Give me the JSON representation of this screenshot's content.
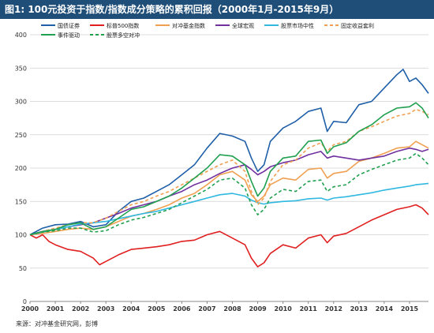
{
  "header": {
    "title": "图1: 100元投资于指数/指数成分策略的累积回报（2000年1月-2015年9月）"
  },
  "source": "来源：对冲基金研究网，彭博",
  "chart_data": {
    "type": "line",
    "title": "图1: 100元投资于指数/指数成分策略的累积回报（2000年1月-2015年9月）",
    "xlabel": "",
    "ylabel": "",
    "xlim": [
      2000,
      2015.75
    ],
    "ylim": [
      0,
      400
    ],
    "yticks": [
      0,
      50,
      100,
      150,
      200,
      250,
      300,
      350,
      400
    ],
    "xticks": [
      "2000",
      "2001",
      "2002",
      "2003",
      "2004",
      "2005",
      "2006",
      "2007",
      "2008",
      "2009",
      "2010",
      "2011",
      "2012",
      "2013",
      "2014",
      "2015"
    ],
    "grid": true,
    "legend_position": "top",
    "series": [
      {
        "name": "国债证券",
        "color": "#1f5fa8",
        "dash": "",
        "points": [
          [
            2000,
            100
          ],
          [
            2000.5,
            110
          ],
          [
            2001,
            115
          ],
          [
            2001.5,
            116
          ],
          [
            2002,
            120
          ],
          [
            2002.5,
            112
          ],
          [
            2003,
            115
          ],
          [
            2003.5,
            135
          ],
          [
            2004,
            150
          ],
          [
            2004.5,
            155
          ],
          [
            2005,
            165
          ],
          [
            2005.5,
            175
          ],
          [
            2006,
            190
          ],
          [
            2006.5,
            205
          ],
          [
            2007,
            230
          ],
          [
            2007.5,
            252
          ],
          [
            2008,
            248
          ],
          [
            2008.5,
            240
          ],
          [
            2008.75,
            215
          ],
          [
            2009,
            195
          ],
          [
            2009.25,
            205
          ],
          [
            2009.5,
            240
          ],
          [
            2010,
            260
          ],
          [
            2010.5,
            270
          ],
          [
            2011,
            285
          ],
          [
            2011.5,
            290
          ],
          [
            2011.75,
            255
          ],
          [
            2012,
            270
          ],
          [
            2012.5,
            268
          ],
          [
            2013,
            295
          ],
          [
            2013.5,
            300
          ],
          [
            2014,
            320
          ],
          [
            2014.5,
            340
          ],
          [
            2014.75,
            348
          ],
          [
            2015,
            330
          ],
          [
            2015.25,
            335
          ],
          [
            2015.5,
            325
          ],
          [
            2015.75,
            312
          ]
        ]
      },
      {
        "name": "标普500指数",
        "color": "#e02020",
        "dash": "",
        "points": [
          [
            2000,
            100
          ],
          [
            2000.25,
            95
          ],
          [
            2000.5,
            100
          ],
          [
            2000.75,
            90
          ],
          [
            2001,
            85
          ],
          [
            2001.5,
            78
          ],
          [
            2002,
            75
          ],
          [
            2002.5,
            65
          ],
          [
            2002.75,
            55
          ],
          [
            2003,
            60
          ],
          [
            2003.5,
            70
          ],
          [
            2004,
            78
          ],
          [
            2004.5,
            80
          ],
          [
            2005,
            82
          ],
          [
            2005.5,
            85
          ],
          [
            2006,
            90
          ],
          [
            2006.5,
            92
          ],
          [
            2007,
            100
          ],
          [
            2007.5,
            105
          ],
          [
            2008,
            95
          ],
          [
            2008.5,
            85
          ],
          [
            2008.75,
            65
          ],
          [
            2009,
            52
          ],
          [
            2009.25,
            58
          ],
          [
            2009.5,
            72
          ],
          [
            2010,
            85
          ],
          [
            2010.5,
            80
          ],
          [
            2011,
            95
          ],
          [
            2011.5,
            100
          ],
          [
            2011.75,
            88
          ],
          [
            2012,
            98
          ],
          [
            2012.5,
            102
          ],
          [
            2013,
            112
          ],
          [
            2013.5,
            122
          ],
          [
            2014,
            130
          ],
          [
            2014.5,
            138
          ],
          [
            2015,
            142
          ],
          [
            2015.25,
            145
          ],
          [
            2015.5,
            140
          ],
          [
            2015.75,
            130
          ]
        ]
      },
      {
        "name": "对冲基金指数",
        "color": "#f0a050",
        "dash": "",
        "points": [
          [
            2000,
            100
          ],
          [
            2000.5,
            102
          ],
          [
            2001,
            105
          ],
          [
            2001.5,
            108
          ],
          [
            2002,
            110
          ],
          [
            2002.5,
            108
          ],
          [
            2003,
            112
          ],
          [
            2003.5,
            120
          ],
          [
            2004,
            128
          ],
          [
            2004.5,
            132
          ],
          [
            2005,
            138
          ],
          [
            2005.5,
            145
          ],
          [
            2006,
            155
          ],
          [
            2006.5,
            162
          ],
          [
            2007,
            175
          ],
          [
            2007.5,
            190
          ],
          [
            2008,
            195
          ],
          [
            2008.5,
            182
          ],
          [
            2008.75,
            160
          ],
          [
            2009,
            150
          ],
          [
            2009.25,
            158
          ],
          [
            2009.5,
            175
          ],
          [
            2010,
            185
          ],
          [
            2010.5,
            182
          ],
          [
            2011,
            198
          ],
          [
            2011.5,
            200
          ],
          [
            2011.75,
            185
          ],
          [
            2012,
            192
          ],
          [
            2012.5,
            195
          ],
          [
            2013,
            210
          ],
          [
            2013.5,
            215
          ],
          [
            2014,
            222
          ],
          [
            2014.5,
            230
          ],
          [
            2015,
            232
          ],
          [
            2015.25,
            240
          ],
          [
            2015.5,
            235
          ],
          [
            2015.75,
            230
          ]
        ]
      },
      {
        "name": "全球宏观",
        "color": "#7030a0",
        "dash": "",
        "points": [
          [
            2000,
            100
          ],
          [
            2000.5,
            105
          ],
          [
            2001,
            108
          ],
          [
            2001.5,
            112
          ],
          [
            2002,
            115
          ],
          [
            2002.5,
            118
          ],
          [
            2003,
            125
          ],
          [
            2003.5,
            132
          ],
          [
            2004,
            140
          ],
          [
            2004.5,
            145
          ],
          [
            2005,
            150
          ],
          [
            2005.5,
            158
          ],
          [
            2006,
            165
          ],
          [
            2006.5,
            175
          ],
          [
            2007,
            182
          ],
          [
            2007.5,
            192
          ],
          [
            2008,
            200
          ],
          [
            2008.5,
            205
          ],
          [
            2008.75,
            198
          ],
          [
            2009,
            190
          ],
          [
            2009.25,
            195
          ],
          [
            2009.5,
            202
          ],
          [
            2010,
            208
          ],
          [
            2010.5,
            212
          ],
          [
            2011,
            220
          ],
          [
            2011.5,
            225
          ],
          [
            2011.75,
            215
          ],
          [
            2012,
            218
          ],
          [
            2012.5,
            215
          ],
          [
            2013,
            212
          ],
          [
            2013.5,
            215
          ],
          [
            2014,
            218
          ],
          [
            2014.5,
            225
          ],
          [
            2015,
            230
          ],
          [
            2015.25,
            228
          ],
          [
            2015.5,
            225
          ],
          [
            2015.75,
            228
          ]
        ]
      },
      {
        "name": "股票市场中性",
        "color": "#30b8e0",
        "dash": "",
        "points": [
          [
            2000,
            100
          ],
          [
            2000.5,
            104
          ],
          [
            2001,
            108
          ],
          [
            2001.5,
            112
          ],
          [
            2002,
            116
          ],
          [
            2002.5,
            118
          ],
          [
            2003,
            120
          ],
          [
            2003.5,
            124
          ],
          [
            2004,
            128
          ],
          [
            2004.5,
            132
          ],
          [
            2005,
            135
          ],
          [
            2005.5,
            140
          ],
          [
            2006,
            145
          ],
          [
            2006.5,
            150
          ],
          [
            2007,
            155
          ],
          [
            2007.5,
            160
          ],
          [
            2008,
            162
          ],
          [
            2008.5,
            158
          ],
          [
            2008.75,
            152
          ],
          [
            2009,
            148
          ],
          [
            2009.25,
            146
          ],
          [
            2009.5,
            148
          ],
          [
            2010,
            150
          ],
          [
            2010.5,
            151
          ],
          [
            2011,
            154
          ],
          [
            2011.5,
            155
          ],
          [
            2011.75,
            152
          ],
          [
            2012,
            155
          ],
          [
            2012.5,
            157
          ],
          [
            2013,
            160
          ],
          [
            2013.5,
            163
          ],
          [
            2014,
            167
          ],
          [
            2014.5,
            170
          ],
          [
            2015,
            173
          ],
          [
            2015.25,
            175
          ],
          [
            2015.5,
            176
          ],
          [
            2015.75,
            177
          ]
        ]
      },
      {
        "name": "固定收益套利",
        "color": "#f0a050",
        "dash": "4,3",
        "points": [
          [
            2000,
            100
          ],
          [
            2000.5,
            105
          ],
          [
            2001,
            110
          ],
          [
            2001.5,
            115
          ],
          [
            2002,
            118
          ],
          [
            2002.5,
            118
          ],
          [
            2003,
            125
          ],
          [
            2003.5,
            135
          ],
          [
            2004,
            145
          ],
          [
            2004.5,
            150
          ],
          [
            2005,
            158
          ],
          [
            2005.5,
            165
          ],
          [
            2006,
            175
          ],
          [
            2006.5,
            185
          ],
          [
            2007,
            195
          ],
          [
            2007.5,
            205
          ],
          [
            2008,
            212
          ],
          [
            2008.5,
            195
          ],
          [
            2008.75,
            165
          ],
          [
            2009,
            145
          ],
          [
            2009.25,
            155
          ],
          [
            2009.5,
            180
          ],
          [
            2010,
            205
          ],
          [
            2010.5,
            212
          ],
          [
            2011,
            230
          ],
          [
            2011.5,
            238
          ],
          [
            2011.75,
            225
          ],
          [
            2012,
            235
          ],
          [
            2012.5,
            240
          ],
          [
            2013,
            255
          ],
          [
            2013.5,
            262
          ],
          [
            2014,
            270
          ],
          [
            2014.5,
            278
          ],
          [
            2015,
            282
          ],
          [
            2015.25,
            288
          ],
          [
            2015.5,
            285
          ],
          [
            2015.75,
            280
          ]
        ]
      },
      {
        "name": "事件驱动",
        "color": "#20a050",
        "dash": "",
        "points": [
          [
            2000,
            100
          ],
          [
            2000.5,
            105
          ],
          [
            2001,
            108
          ],
          [
            2001.5,
            115
          ],
          [
            2002,
            118
          ],
          [
            2002.5,
            108
          ],
          [
            2003,
            112
          ],
          [
            2003.5,
            125
          ],
          [
            2004,
            138
          ],
          [
            2004.5,
            142
          ],
          [
            2005,
            150
          ],
          [
            2005.5,
            158
          ],
          [
            2006,
            170
          ],
          [
            2006.5,
            185
          ],
          [
            2007,
            200
          ],
          [
            2007.5,
            220
          ],
          [
            2008,
            218
          ],
          [
            2008.5,
            205
          ],
          [
            2008.75,
            180
          ],
          [
            2009,
            158
          ],
          [
            2009.25,
            170
          ],
          [
            2009.5,
            195
          ],
          [
            2010,
            215
          ],
          [
            2010.5,
            218
          ],
          [
            2011,
            240
          ],
          [
            2011.5,
            242
          ],
          [
            2011.75,
            222
          ],
          [
            2012,
            232
          ],
          [
            2012.5,
            238
          ],
          [
            2013,
            255
          ],
          [
            2013.5,
            265
          ],
          [
            2014,
            280
          ],
          [
            2014.5,
            290
          ],
          [
            2015,
            292
          ],
          [
            2015.25,
            298
          ],
          [
            2015.5,
            290
          ],
          [
            2015.75,
            275
          ]
        ]
      },
      {
        "name": "股票多空对冲",
        "color": "#20a050",
        "dash": "4,3",
        "points": [
          [
            2000,
            100
          ],
          [
            2000.5,
            104
          ],
          [
            2001,
            106
          ],
          [
            2001.5,
            110
          ],
          [
            2002,
            110
          ],
          [
            2002.5,
            104
          ],
          [
            2003,
            106
          ],
          [
            2003.5,
            115
          ],
          [
            2004,
            122
          ],
          [
            2004.5,
            126
          ],
          [
            2005,
            132
          ],
          [
            2005.5,
            138
          ],
          [
            2006,
            148
          ],
          [
            2006.5,
            158
          ],
          [
            2007,
            168
          ],
          [
            2007.5,
            182
          ],
          [
            2008,
            185
          ],
          [
            2008.5,
            170
          ],
          [
            2008.75,
            145
          ],
          [
            2009,
            130
          ],
          [
            2009.25,
            138
          ],
          [
            2009.5,
            155
          ],
          [
            2010,
            168
          ],
          [
            2010.5,
            165
          ],
          [
            2011,
            180
          ],
          [
            2011.5,
            182
          ],
          [
            2011.75,
            165
          ],
          [
            2012,
            172
          ],
          [
            2012.5,
            175
          ],
          [
            2013,
            190
          ],
          [
            2013.5,
            198
          ],
          [
            2014,
            205
          ],
          [
            2014.5,
            212
          ],
          [
            2015,
            215
          ],
          [
            2015.25,
            222
          ],
          [
            2015.5,
            215
          ],
          [
            2015.75,
            205
          ]
        ]
      }
    ]
  }
}
